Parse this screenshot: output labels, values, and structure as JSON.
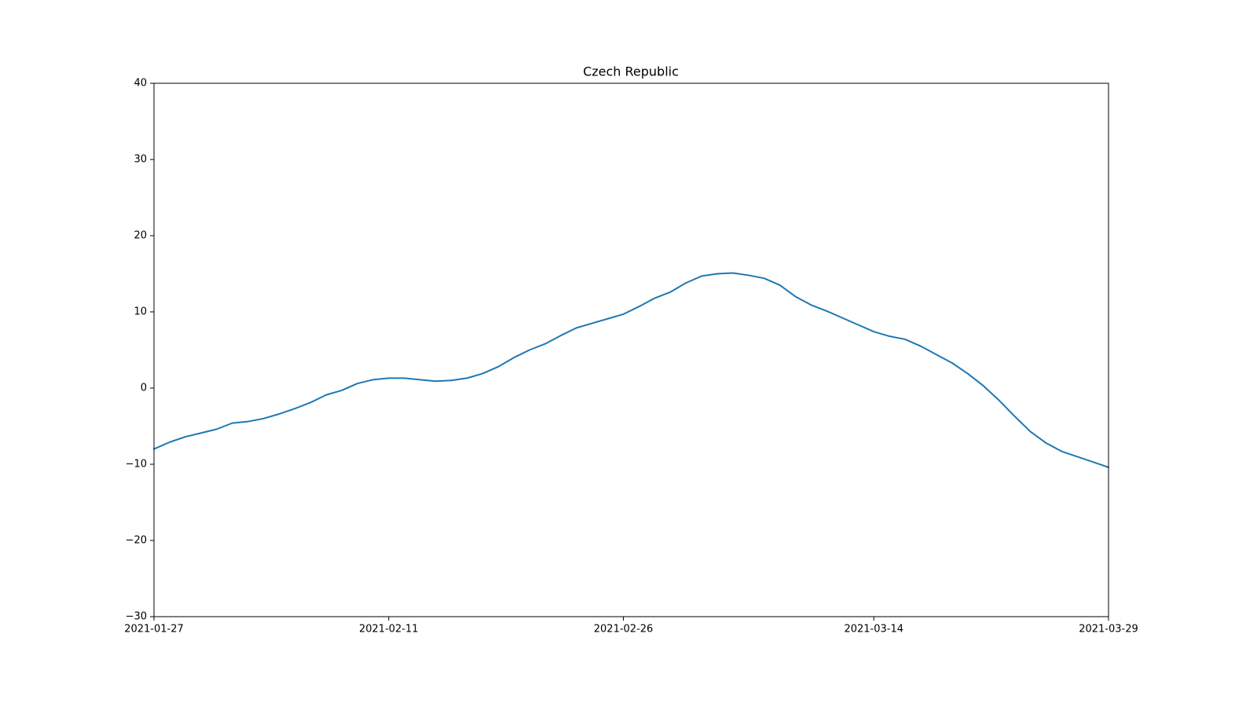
{
  "chart_data": {
    "type": "line",
    "title": "Czech Republic",
    "xlabel": "",
    "ylabel": "",
    "ylim": [
      -30,
      40
    ],
    "xlim": [
      "2021-01-27",
      "2021-03-29"
    ],
    "grid": false,
    "legend": "none",
    "line_color": "#1f77b4",
    "x_ticks": [
      "2021-01-27",
      "2021-02-11",
      "2021-02-26",
      "2021-03-14",
      "2021-03-29"
    ],
    "y_ticks": [
      40,
      30,
      20,
      10,
      0,
      -10,
      -20,
      -30
    ],
    "y_tick_labels": [
      "40",
      "30",
      "20",
      "10",
      "0",
      "−10",
      "−20",
      "−30"
    ],
    "series": [
      {
        "x": [
          "2021-01-27",
          "2021-01-28",
          "2021-01-29",
          "2021-01-30",
          "2021-01-31",
          "2021-02-01",
          "2021-02-02",
          "2021-02-03",
          "2021-02-04",
          "2021-02-05",
          "2021-02-06",
          "2021-02-07",
          "2021-02-08",
          "2021-02-09",
          "2021-02-10",
          "2021-02-11",
          "2021-02-12",
          "2021-02-13",
          "2021-02-14",
          "2021-02-15",
          "2021-02-16",
          "2021-02-17",
          "2021-02-18",
          "2021-02-19",
          "2021-02-20",
          "2021-02-21",
          "2021-02-22",
          "2021-02-23",
          "2021-02-24",
          "2021-02-25",
          "2021-02-26",
          "2021-02-27",
          "2021-02-28",
          "2021-03-01",
          "2021-03-02",
          "2021-03-03",
          "2021-03-04",
          "2021-03-05",
          "2021-03-06",
          "2021-03-07",
          "2021-03-08",
          "2021-03-09",
          "2021-03-10",
          "2021-03-11",
          "2021-03-12",
          "2021-03-13",
          "2021-03-14",
          "2021-03-15",
          "2021-03-16",
          "2021-03-17",
          "2021-03-18",
          "2021-03-19",
          "2021-03-20",
          "2021-03-21",
          "2021-03-22",
          "2021-03-23",
          "2021-03-24",
          "2021-03-25",
          "2021-03-26",
          "2021-03-27",
          "2021-03-28",
          "2021-03-29"
        ],
        "values": [
          -8.0,
          -7.1,
          -6.4,
          -5.9,
          -5.4,
          -4.6,
          -4.4,
          -4.0,
          -3.4,
          -2.7,
          -1.9,
          -0.9,
          -0.3,
          0.6,
          1.1,
          1.3,
          1.3,
          1.1,
          0.9,
          1.0,
          1.3,
          1.9,
          2.8,
          4.0,
          5.0,
          5.8,
          6.9,
          7.9,
          8.5,
          9.1,
          9.7,
          10.7,
          11.8,
          12.6,
          13.8,
          14.7,
          15.0,
          15.1,
          14.8,
          14.4,
          13.5,
          12.0,
          10.9,
          10.1,
          9.2,
          8.3,
          7.4,
          6.8,
          6.4,
          5.5,
          4.4,
          3.3,
          1.9,
          0.3,
          -1.6,
          -3.7,
          -5.7,
          -7.2,
          -8.3,
          -9.0,
          -9.7,
          -10.4
        ]
      }
    ]
  }
}
